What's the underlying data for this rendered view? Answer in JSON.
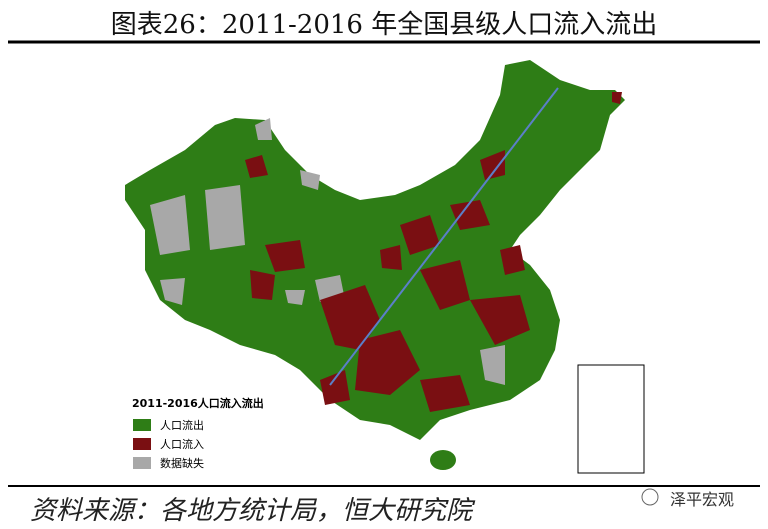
{
  "title": "图表26：2011-2016 年全国县级人口流入流出",
  "legend": {
    "title": "2011-2016人口流入流出",
    "items": [
      {
        "label": "人口流出",
        "color": "#2e7d16"
      },
      {
        "label": "人口流入",
        "color": "#7a0f12"
      },
      {
        "label": "数据缺失",
        "color": "#a8a8a8"
      }
    ]
  },
  "source": "资料来源：各地方统计局，恒大研究院",
  "watermark": "泽平宏观"
}
